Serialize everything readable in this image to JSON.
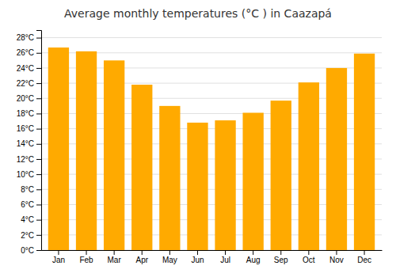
{
  "chart_data": {
    "type": "bar",
    "title": "Average monthly temperatures (°C ) in Caazapá",
    "categories": [
      "Jan",
      "Feb",
      "Mar",
      "Apr",
      "May",
      "Jun",
      "Jul",
      "Aug",
      "Sep",
      "Oct",
      "Nov",
      "Dec"
    ],
    "values": [
      26.7,
      26.2,
      25.0,
      21.8,
      19.0,
      16.8,
      17.1,
      18.1,
      19.7,
      22.1,
      24.0,
      25.9
    ],
    "color": "#FFAA00",
    "ylim": [
      0,
      29
    ],
    "yticks": [
      {
        "value": 0,
        "label": "0°C"
      },
      {
        "value": 2,
        "label": "2°C"
      },
      {
        "value": 4,
        "label": "4°C"
      },
      {
        "value": 6,
        "label": "6°C"
      },
      {
        "value": 8,
        "label": "8°C"
      },
      {
        "value": 10,
        "label": "10°C"
      },
      {
        "value": 12,
        "label": "12°C"
      },
      {
        "value": 14,
        "label": "14°C"
      },
      {
        "value": 16,
        "label": "16°C"
      },
      {
        "value": 18,
        "label": "18°C"
      },
      {
        "value": 20,
        "label": "20°C"
      },
      {
        "value": 22,
        "label": "22°C"
      },
      {
        "value": 24,
        "label": "24°C"
      },
      {
        "value": 26,
        "label": "26°C"
      },
      {
        "value": 28,
        "label": "28°C"
      }
    ],
    "grid": true
  }
}
